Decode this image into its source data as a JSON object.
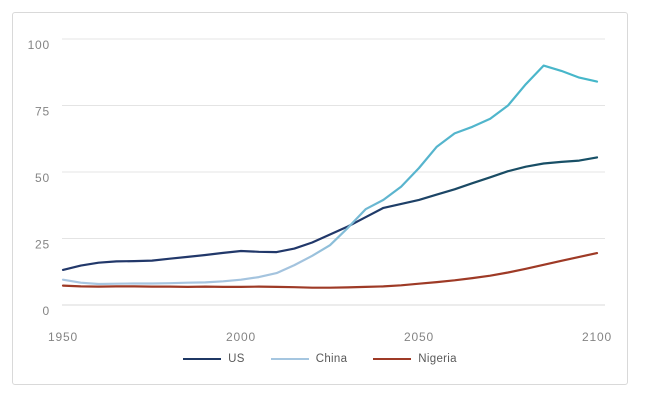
{
  "chart_data": {
    "type": "line",
    "title": "",
    "xlabel": "",
    "ylabel": "",
    "xlim": [
      1950,
      2100
    ],
    "ylim": [
      0,
      100
    ],
    "x_ticks": [
      1950,
      2000,
      2050,
      2100
    ],
    "y_ticks": [
      0,
      25,
      50,
      75,
      100
    ],
    "grid": "horizontal",
    "legend_position": "bottom-center",
    "x": [
      1950,
      1955,
      1960,
      1965,
      1970,
      1975,
      1980,
      1985,
      1990,
      1995,
      2000,
      2005,
      2010,
      2015,
      2020,
      2025,
      2030,
      2035,
      2040,
      2045,
      2050,
      2055,
      2060,
      2065,
      2070,
      2075,
      2080,
      2085,
      2090,
      2095,
      2100
    ],
    "series": [
      {
        "name": "US",
        "color": "#1f3864",
        "gradient": [
          {
            "offset": 0,
            "color": "#22386a"
          },
          {
            "offset": 55,
            "color": "#21386a"
          },
          {
            "offset": 78,
            "color": "#1a4c64"
          },
          {
            "offset": 100,
            "color": "#175067"
          }
        ],
        "values": [
          13.2,
          14.8,
          15.9,
          16.4,
          16.5,
          16.7,
          17.4,
          18.1,
          18.8,
          19.6,
          20.3,
          20.0,
          19.9,
          21.2,
          23.5,
          26.5,
          29.5,
          33.0,
          36.5,
          38.0,
          39.5,
          41.5,
          43.5,
          45.8,
          48.0,
          50.3,
          52.0,
          53.2,
          53.8,
          54.3,
          55.5
        ]
      },
      {
        "name": "China",
        "color": "#a5c6e0",
        "gradient": [
          {
            "offset": 0,
            "color": "#a9c6e1"
          },
          {
            "offset": 45,
            "color": "#a3c3de"
          },
          {
            "offset": 62,
            "color": "#5ab4ce"
          },
          {
            "offset": 100,
            "color": "#44b7c9"
          }
        ],
        "values": [
          9.5,
          8.4,
          7.9,
          8.0,
          8.1,
          8.1,
          8.2,
          8.4,
          8.5,
          8.9,
          9.5,
          10.5,
          12.0,
          15.0,
          18.5,
          22.5,
          29.0,
          36.0,
          39.5,
          44.5,
          51.5,
          59.5,
          64.5,
          67.0,
          70.0,
          75.0,
          83.0,
          90.0,
          88.0,
          85.5,
          84.0
        ]
      },
      {
        "name": "Nigeria",
        "color": "#9e3a26",
        "gradient": [
          {
            "offset": 0,
            "color": "#9e3a26"
          },
          {
            "offset": 100,
            "color": "#9e3a26"
          }
        ],
        "values": [
          7.3,
          7.0,
          6.9,
          7.0,
          7.0,
          6.9,
          6.9,
          6.8,
          6.9,
          6.8,
          6.8,
          6.9,
          6.8,
          6.7,
          6.5,
          6.5,
          6.6,
          6.8,
          7.0,
          7.4,
          8.0,
          8.6,
          9.3,
          10.1,
          11.0,
          12.2,
          13.6,
          15.1,
          16.6,
          18.1,
          19.5
        ]
      }
    ]
  },
  "colors": {
    "background": "#ffffff",
    "frame_border": "#d9d9d9",
    "gridline": "#e4e4e4",
    "axis_line": "#d8d8d8",
    "tick_label": "#848484",
    "legend_label": "#595959"
  }
}
